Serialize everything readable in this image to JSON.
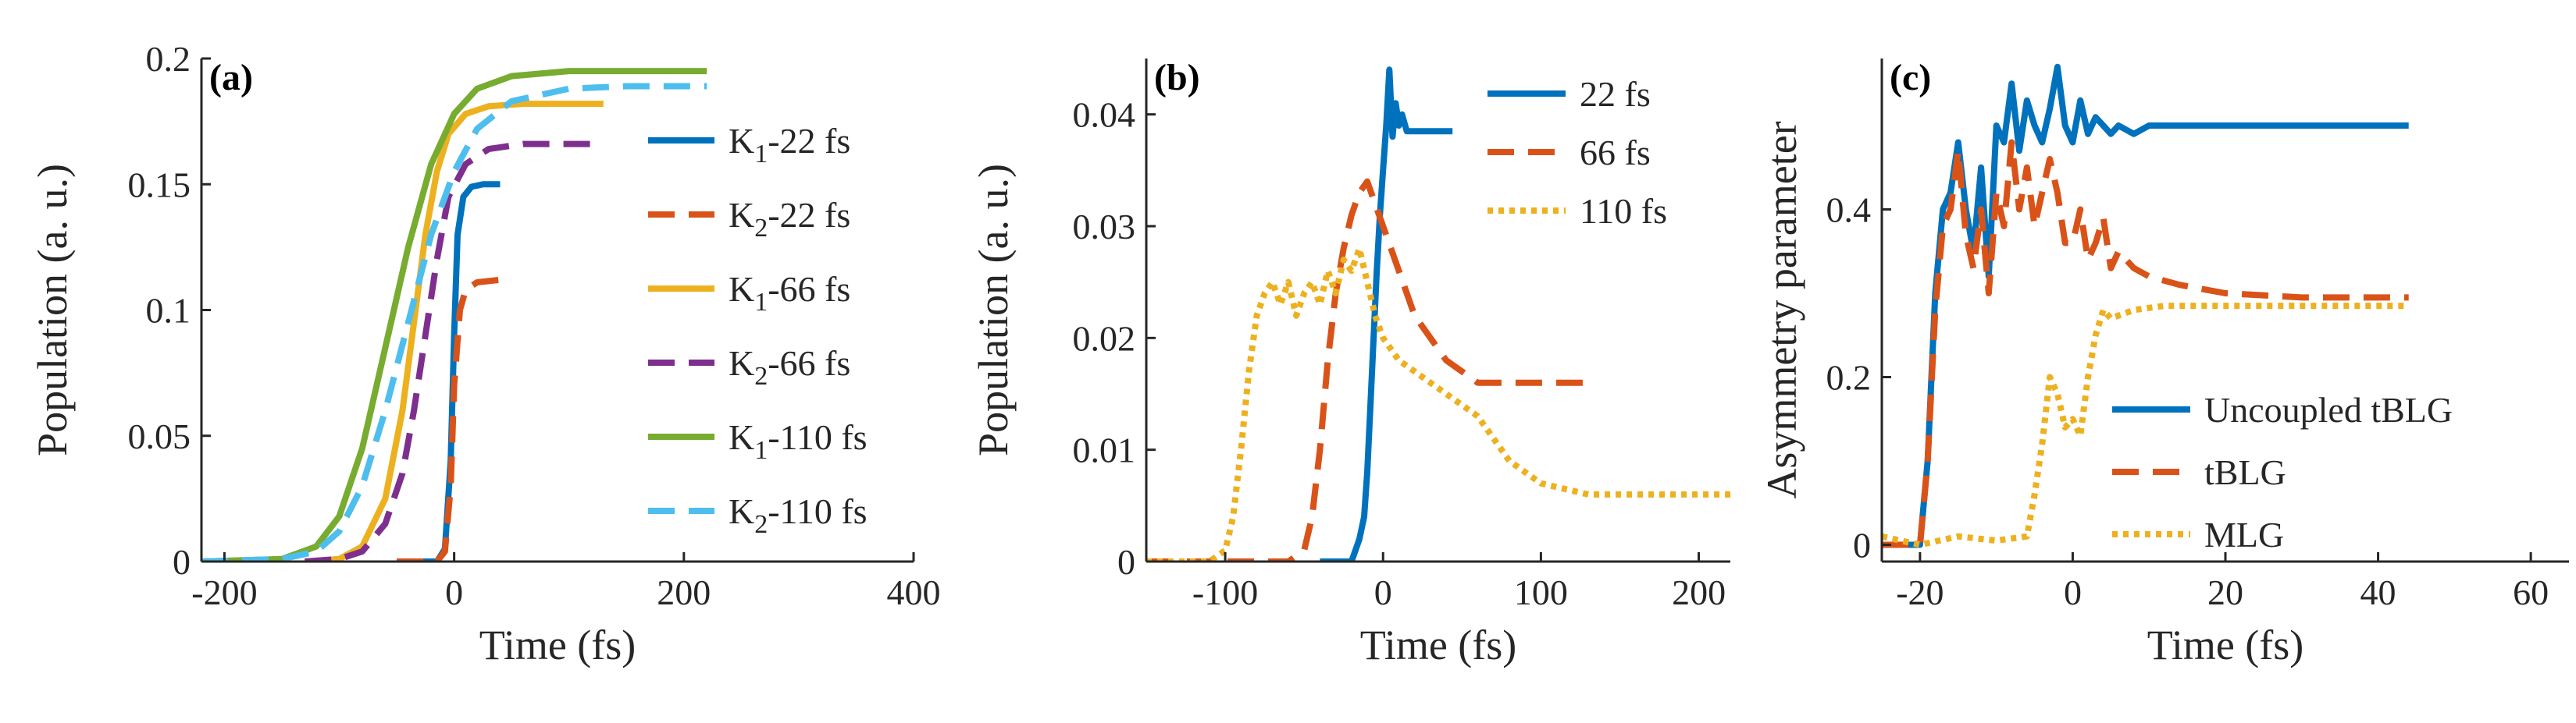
{
  "figure": {
    "panel_count": 3
  },
  "chart_data": [
    {
      "type": "line",
      "panel_label": "(a)",
      "xlabel": "Time (fs)",
      "ylabel": "Population (a. u.)",
      "xlim": [
        -220,
        400
      ],
      "ylim": [
        0,
        0.2
      ],
      "xticks": [
        -200,
        0,
        200,
        400
      ],
      "yticks": [
        0,
        0.05,
        0.1,
        0.15,
        0.2
      ],
      "xtick_labels": [
        "-200",
        "0",
        "200",
        "400"
      ],
      "ytick_labels": [
        "0",
        "0.05",
        "0.1",
        "0.15",
        "0.2"
      ],
      "legend_position": "right",
      "series": [
        {
          "name": "K₁-22 fs",
          "legend_main": "K",
          "legend_sub": "1",
          "legend_rest": "-22 fs",
          "color": "#0072BD",
          "dash": "solid",
          "x": [
            -50,
            -15,
            -8,
            -3,
            0,
            3,
            8,
            15,
            25,
            40
          ],
          "y": [
            0,
            0.0,
            0.005,
            0.04,
            0.09,
            0.13,
            0.145,
            0.149,
            0.15,
            0.15
          ]
        },
        {
          "name": "K₂-22 fs",
          "legend_main": "K",
          "legend_sub": "2",
          "legend_rest": "-22 fs",
          "color": "#D95319",
          "dash": "dashed",
          "x": [
            -50,
            -15,
            -8,
            -3,
            0,
            5,
            10,
            20,
            40
          ],
          "y": [
            0,
            0.0,
            0.004,
            0.03,
            0.07,
            0.1,
            0.108,
            0.111,
            0.112
          ]
        },
        {
          "name": "K₁-66 fs",
          "legend_main": "K",
          "legend_sub": "1",
          "legend_rest": "-66 fs",
          "color": "#EDB120",
          "dash": "solid",
          "x": [
            -130,
            -100,
            -80,
            -60,
            -45,
            -35,
            -25,
            -15,
            -5,
            10,
            30,
            60,
            90,
            130
          ],
          "y": [
            0,
            0.001,
            0.006,
            0.025,
            0.06,
            0.095,
            0.13,
            0.155,
            0.17,
            0.178,
            0.181,
            0.182,
            0.182,
            0.182
          ]
        },
        {
          "name": "K₂-66 fs",
          "legend_main": "K",
          "legend_sub": "2",
          "legend_rest": "-66 fs",
          "color": "#7E2F8E",
          "dash": "dashed",
          "x": [
            -130,
            -100,
            -80,
            -60,
            -45,
            -35,
            -25,
            -15,
            -5,
            10,
            30,
            60,
            90,
            130
          ],
          "y": [
            0,
            0.001,
            0.004,
            0.015,
            0.035,
            0.06,
            0.09,
            0.12,
            0.145,
            0.158,
            0.164,
            0.166,
            0.166,
            0.166
          ]
        },
        {
          "name": "K₁-110 fs",
          "legend_main": "K",
          "legend_sub": "1",
          "legend_rest": "-110 fs",
          "color": "#77AC30",
          "dash": "solid",
          "x": [
            -220,
            -150,
            -120,
            -100,
            -80,
            -60,
            -40,
            -20,
            0,
            20,
            50,
            100,
            150,
            220
          ],
          "y": [
            0,
            0.001,
            0.006,
            0.018,
            0.045,
            0.085,
            0.125,
            0.158,
            0.178,
            0.188,
            0.193,
            0.195,
            0.195,
            0.195
          ]
        },
        {
          "name": "K₂-110 fs",
          "legend_main": "K",
          "legend_sub": "2",
          "legend_rest": "-110 fs",
          "color": "#4DBEEE",
          "dash": "dashed",
          "x": [
            -220,
            -150,
            -120,
            -100,
            -80,
            -60,
            -40,
            -20,
            0,
            20,
            50,
            100,
            150,
            220
          ],
          "y": [
            0,
            0.001,
            0.004,
            0.012,
            0.03,
            0.06,
            0.095,
            0.13,
            0.155,
            0.172,
            0.183,
            0.188,
            0.189,
            0.189
          ]
        }
      ]
    },
    {
      "type": "line",
      "panel_label": "(b)",
      "xlabel": "Time (fs)",
      "ylabel": "Population (a. u.)",
      "xlim": [
        -150,
        220
      ],
      "ylim": [
        0,
        0.045
      ],
      "xticks": [
        -100,
        0,
        100,
        200
      ],
      "yticks": [
        0,
        0.01,
        0.02,
        0.03,
        0.04
      ],
      "xtick_labels": [
        "-100",
        "0",
        "100",
        "200"
      ],
      "ytick_labels": [
        "0",
        "0.01",
        "0.02",
        "0.03",
        "0.04"
      ],
      "legend_position": "top-right",
      "series": [
        {
          "name": "22 fs",
          "color": "#0072BD",
          "dash": "solid",
          "x": [
            -40,
            -20,
            -15,
            -12,
            -10,
            -8,
            -6,
            -4,
            -2,
            0,
            2,
            4,
            6,
            8,
            10,
            12,
            15,
            20,
            25,
            30,
            44
          ],
          "y": [
            0,
            0,
            0.002,
            0.004,
            0.008,
            0.014,
            0.02,
            0.026,
            0.031,
            0.035,
            0.039,
            0.044,
            0.038,
            0.041,
            0.039,
            0.04,
            0.0385,
            0.0385,
            0.0385,
            0.0385,
            0.0385
          ]
        },
        {
          "name": "66 fs",
          "color": "#D95319",
          "dash": "dashed",
          "x": [
            -150,
            -60,
            -50,
            -45,
            -40,
            -35,
            -30,
            -25,
            -20,
            -15,
            -10,
            -5,
            0,
            5,
            10,
            15,
            20,
            30,
            40,
            50,
            60,
            70,
            90,
            130
          ],
          "y": [
            0,
            0,
            0.001,
            0.004,
            0.01,
            0.018,
            0.024,
            0.028,
            0.031,
            0.033,
            0.034,
            0.032,
            0.03,
            0.028,
            0.026,
            0.024,
            0.022,
            0.02,
            0.018,
            0.017,
            0.016,
            0.016,
            0.016,
            0.016
          ]
        },
        {
          "name": "110 fs",
          "color": "#EDB120",
          "dash": "dotted",
          "x": [
            -150,
            -110,
            -100,
            -95,
            -90,
            -85,
            -80,
            -75,
            -70,
            -65,
            -60,
            -55,
            -50,
            -45,
            -40,
            -35,
            -30,
            -25,
            -20,
            -15,
            -10,
            -5,
            0,
            5,
            10,
            20,
            30,
            40,
            50,
            60,
            70,
            80,
            100,
            130,
            160,
            220
          ],
          "y": [
            0,
            0,
            0.001,
            0.004,
            0.01,
            0.017,
            0.022,
            0.024,
            0.025,
            0.023,
            0.025,
            0.022,
            0.024,
            0.025,
            0.023,
            0.026,
            0.024,
            0.027,
            0.026,
            0.028,
            0.025,
            0.022,
            0.02,
            0.019,
            0.018,
            0.017,
            0.016,
            0.015,
            0.014,
            0.013,
            0.011,
            0.009,
            0.007,
            0.006,
            0.006,
            0.006
          ]
        }
      ]
    },
    {
      "type": "line",
      "panel_label": "(c)",
      "xlabel": "Time (fs)",
      "ylabel": "Asymmetry parameter",
      "xlim": [
        -25,
        65
      ],
      "ylim": [
        -0.02,
        0.58
      ],
      "xticks": [
        -20,
        0,
        20,
        40,
        60
      ],
      "yticks": [
        0,
        0.2,
        0.4
      ],
      "xtick_labels": [
        "-20",
        "0",
        "20",
        "40",
        "60"
      ],
      "ytick_labels": [
        "0",
        "0.2",
        "0.4"
      ],
      "legend_position": "bottom-right",
      "series": [
        {
          "name": "Uncoupled tBLG",
          "color": "#0072BD",
          "dash": "solid",
          "x": [
            -25,
            -20,
            -19,
            -18,
            -17,
            -16,
            -15,
            -14,
            -13,
            -12,
            -11,
            -10,
            -9,
            -8,
            -7,
            -6,
            -5,
            -4,
            -3,
            -2,
            -1,
            0,
            1,
            2,
            3,
            4,
            5,
            6,
            8,
            10,
            14,
            20,
            30,
            44
          ],
          "y": [
            0,
            0,
            0.1,
            0.3,
            0.4,
            0.42,
            0.48,
            0.4,
            0.35,
            0.45,
            0.32,
            0.5,
            0.48,
            0.55,
            0.47,
            0.53,
            0.5,
            0.48,
            0.52,
            0.57,
            0.5,
            0.48,
            0.53,
            0.49,
            0.51,
            0.5,
            0.49,
            0.5,
            0.49,
            0.5,
            0.5,
            0.5,
            0.5,
            0.5
          ]
        },
        {
          "name": "tBLG",
          "color": "#D95319",
          "dash": "dashed",
          "x": [
            -25,
            -20,
            -19,
            -18,
            -17,
            -16,
            -15,
            -14,
            -13,
            -12,
            -11,
            -10,
            -9,
            -8,
            -7,
            -6,
            -5,
            -4,
            -3,
            -2,
            -1,
            0,
            1,
            2,
            3,
            4,
            5,
            6,
            8,
            10,
            14,
            20,
            30,
            44
          ],
          "y": [
            0,
            0,
            0.1,
            0.28,
            0.38,
            0.4,
            0.47,
            0.37,
            0.33,
            0.4,
            0.3,
            0.42,
            0.38,
            0.48,
            0.4,
            0.45,
            0.38,
            0.42,
            0.46,
            0.42,
            0.36,
            0.36,
            0.4,
            0.34,
            0.36,
            0.39,
            0.33,
            0.35,
            0.33,
            0.32,
            0.31,
            0.3,
            0.295,
            0.295
          ]
        },
        {
          "name": "MLG",
          "color": "#EDB120",
          "dash": "dotted",
          "x": [
            -25,
            -20,
            -15,
            -10,
            -6,
            -5,
            -4,
            -3,
            -2,
            -1,
            0,
            1,
            2,
            3,
            4,
            5,
            8,
            12,
            20,
            30,
            44
          ],
          "y": [
            0.01,
            0.0,
            0.01,
            0.005,
            0.01,
            0.06,
            0.12,
            0.2,
            0.18,
            0.14,
            0.15,
            0.13,
            0.2,
            0.25,
            0.28,
            0.27,
            0.28,
            0.285,
            0.285,
            0.285,
            0.285
          ]
        }
      ]
    }
  ]
}
